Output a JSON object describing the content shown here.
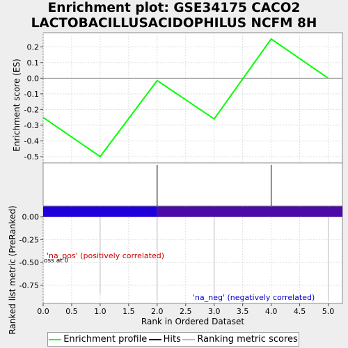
{
  "title": {
    "line1": "Enrichment plot: GSE34175 CACO2",
    "line2": "LACTOBACILLUSACIDOPHILUS NCFM 8H"
  },
  "colors": {
    "profile": "#00ff00",
    "hits": "#000000",
    "ranking": "#bbbbbb",
    "bar_pos": "#2000d8",
    "bar_neg": "#4c0aa6",
    "pos_text": "#cc0000",
    "neg_text": "#0000cc"
  },
  "chart_data": [
    {
      "type": "line",
      "name": "enrichment-profile",
      "ylabel": "Enrichment score (ES)",
      "x": [
        0,
        1,
        2,
        3,
        4,
        5
      ],
      "y": [
        -0.25,
        -0.5,
        -0.015,
        -0.26,
        0.25,
        0.0
      ],
      "xlim": [
        0,
        5.25
      ],
      "ylim": [
        -0.54,
        0.29
      ],
      "yticks": [
        -0.5,
        -0.4,
        -0.3,
        -0.2,
        -0.1,
        0.0,
        0.1,
        0.2
      ],
      "ytick_labels": [
        "-0.5",
        "-0.4",
        "-0.3",
        "-0.2",
        "-0.1",
        "0.0",
        "0.1",
        "0.2"
      ],
      "grid": true
    },
    {
      "type": "bar",
      "name": "hits",
      "hit_positions": [
        2,
        4
      ],
      "xlim": [
        0,
        5.25
      ]
    },
    {
      "type": "area",
      "name": "ranking-metric",
      "ylabel": "Ranked list metric (PreRanked)",
      "xlabel": "Rank in Ordered Dataset",
      "xlim": [
        0,
        5.25
      ],
      "ylim": [
        -0.95,
        0.12
      ],
      "ranking_lines": [
        {
          "x": 1,
          "y": -0.85
        },
        {
          "x": 2,
          "y": -0.92
        },
        {
          "x": 3,
          "y": -0.92
        },
        {
          "x": 5,
          "y": -0.92
        }
      ],
      "bar_segments": [
        {
          "from": 0,
          "to": 2,
          "color": "pos"
        },
        {
          "from": 2,
          "to": 5.25,
          "color": "neg"
        }
      ],
      "yticks": [
        0.0,
        -0.25,
        -0.5,
        -0.75
      ],
      "ytick_labels": [
        "0.00",
        "-0.25",
        "-0.50",
        "-0.75"
      ],
      "xticks": [
        0.0,
        0.5,
        1.0,
        1.5,
        2.0,
        2.5,
        3.0,
        3.5,
        4.0,
        4.5,
        5.0
      ],
      "xtick_labels": [
        "0.0",
        "0.5",
        "1.0",
        "1.5",
        "2.0",
        "2.5",
        "3.0",
        "3.5",
        "4.0",
        "4.5",
        "5.0"
      ],
      "annotations": {
        "pos": "'na_pos' (positively correlated)",
        "neg": "'na_neg' (negatively correlated)",
        "zero_cross": "oss at 0"
      },
      "grid": true
    }
  ],
  "legend": {
    "profile": "Enrichment profile",
    "hits": "Hits",
    "ranking": "Ranking metric scores"
  }
}
